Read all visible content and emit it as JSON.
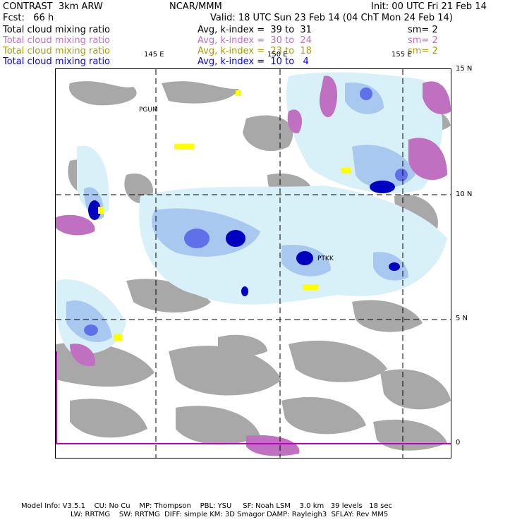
{
  "header": {
    "left_line1": "CONTRAST  3km ARW",
    "center_line1": "NCAR/MMM",
    "right_line1": "Init: 00 UTC Fri 21 Feb 14",
    "left_line2": "Fcst:   66 h",
    "right_line2": "Valid: 18 UTC Sun 23 Feb 14 (04 ChT Mon 24 Feb 14)"
  },
  "fields": [
    {
      "name": "Total cloud mixing ratio",
      "avg": "Avg, k-index =  39 to  31",
      "sm": "sm= 2",
      "color": "#000000"
    },
    {
      "name": "Total cloud mixing ratio",
      "avg": "Avg, k-index =  30 to  24",
      "sm": "sm= 2",
      "color": "#c070c0"
    },
    {
      "name": "Total cloud mixing ratio",
      "avg": "Avg, k-index =  23 to  18",
      "sm": "sm= 2",
      "color": "#a0a000"
    },
    {
      "name": "Total cloud mixing ratio",
      "avg": "Avg, k-index =  10 to   4",
      "sm": "",
      "color": "#0000ff"
    }
  ],
  "map": {
    "lon_labels": [
      "145 E",
      "150 E",
      "155 E"
    ],
    "lat_labels": [
      "15 N",
      "10 N",
      "5 N",
      "0"
    ],
    "stations": [
      "PGUM",
      "PTKK"
    ],
    "colors": {
      "gray_cloud": "#a8a8a8",
      "magenta_cloud": "#c070c0",
      "yellow_cloud": "#ffff00",
      "light_blue": "#d8f0f8",
      "mid_blue": "#a8c8f0",
      "blue": "#6070e8",
      "dark_blue": "#0000c0",
      "axis_magenta": "#c000c0"
    }
  },
  "footer": {
    "line1": "Model Info: V3.5.1    CU: No Cu    MP: Thompson    PBL: YSU     SF: Noah LSM    3.0 km   39 levels   18 sec",
    "line2": "LW: RRTMG    SW: RRTMG  DIFF: simple KM: 3D Smagor DAMP: Rayleigh3  SFLAY: Rev MM5"
  }
}
